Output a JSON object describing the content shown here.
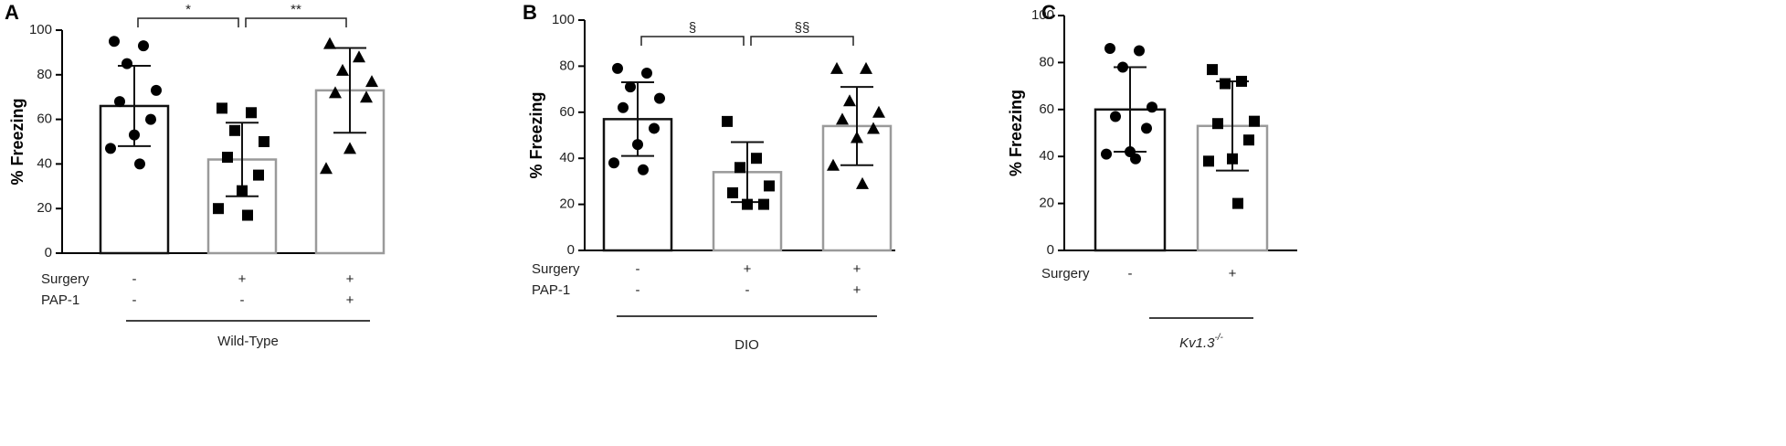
{
  "chart_data": [
    {
      "type": "bar",
      "panel": "A",
      "ylabel": "% Freezing",
      "ylim": [
        0,
        100
      ],
      "yticks": [
        0,
        20,
        40,
        60,
        80,
        100
      ],
      "series": [
        {
          "values": [
            66,
            42,
            73
          ],
          "errors": [
            18,
            16.5,
            19
          ],
          "edge_colors": [
            "#111111",
            "#9a9a9a",
            "#9a9a9a"
          ]
        }
      ],
      "points": [
        {
          "marker": "circle",
          "values": [
            95,
            93,
            85,
            73,
            68,
            60,
            53,
            47,
            40
          ]
        },
        {
          "marker": "square",
          "values": [
            65,
            63,
            55,
            50,
            43,
            35,
            28,
            20,
            17
          ]
        },
        {
          "marker": "triangle",
          "values": [
            94,
            88,
            82,
            77,
            72,
            70,
            47,
            38
          ]
        }
      ],
      "brackets": [
        "*",
        "**"
      ],
      "rows": [
        {
          "label": "Surgery",
          "values": [
            "-",
            "+",
            "+"
          ]
        },
        {
          "label": "PAP-1",
          "values": [
            "-",
            "-",
            "+"
          ]
        }
      ],
      "group_label": "Wild-Type"
    },
    {
      "type": "bar",
      "panel": "B",
      "ylabel": "% Freezing",
      "ylim": [
        0,
        100
      ],
      "yticks": [
        0,
        20,
        40,
        60,
        80,
        100
      ],
      "series": [
        {
          "values": [
            57,
            34,
            54
          ],
          "errors": [
            16,
            13,
            17
          ],
          "edge_colors": [
            "#111111",
            "#9a9a9a",
            "#9a9a9a"
          ]
        }
      ],
      "points": [
        {
          "marker": "circle",
          "values": [
            79,
            77,
            71,
            66,
            62,
            53,
            46,
            38,
            35
          ]
        },
        {
          "marker": "square",
          "values": [
            56,
            40,
            36,
            28,
            25,
            20,
            20
          ]
        },
        {
          "marker": "triangle",
          "values": [
            79,
            79,
            65,
            60,
            57,
            53,
            49,
            37,
            29
          ]
        }
      ],
      "brackets": [
        "§",
        "§§"
      ],
      "rows": [
        {
          "label": "Surgery",
          "values": [
            "-",
            "+",
            "+"
          ]
        },
        {
          "label": "PAP-1",
          "values": [
            "-",
            "-",
            "+"
          ]
        }
      ],
      "group_label": "DIO"
    },
    {
      "type": "bar",
      "panel": "C",
      "ylabel": "% Freezing",
      "ylim": [
        0,
        100
      ],
      "yticks": [
        0,
        20,
        40,
        60,
        80,
        100
      ],
      "series": [
        {
          "values": [
            60,
            53
          ],
          "errors": [
            18,
            19
          ],
          "edge_colors": [
            "#111111",
            "#9a9a9a"
          ]
        }
      ],
      "points": [
        {
          "marker": "circle",
          "values": [
            86,
            85,
            78,
            61,
            57,
            52,
            42,
            41,
            39
          ]
        },
        {
          "marker": "square",
          "values": [
            77,
            72,
            71,
            55,
            54,
            47,
            39,
            38,
            20
          ]
        }
      ],
      "brackets": [],
      "rows": [
        {
          "label": "Surgery",
          "values": [
            "-",
            "+"
          ]
        }
      ],
      "group_label": {
        "text": "Kv1.3",
        "superscript": "-/-"
      }
    }
  ]
}
